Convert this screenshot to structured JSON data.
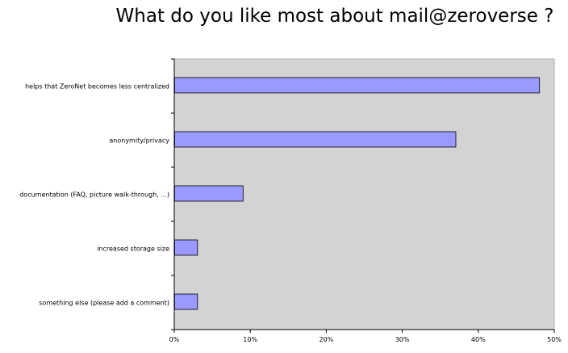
{
  "chart_data": {
    "type": "bar",
    "orientation": "horizontal",
    "title": "What do you like most about mail@zeroverse ?",
    "xlabel": "",
    "ylabel": "",
    "categories": [
      "helps that ZeroNet becomes less centralized",
      "anonymity/privacy",
      "documentation (FAQ, picture walk-through, ...)",
      "increased storage size",
      "something else (please add a comment)"
    ],
    "values": [
      48,
      37,
      9,
      3,
      3
    ],
    "value_unit": "%",
    "xlim": [
      0,
      50
    ],
    "x_ticks": [
      0,
      10,
      20,
      30,
      40,
      50
    ],
    "x_tick_labels": [
      "0%",
      "10%",
      "20%",
      "30%",
      "40%",
      "50%"
    ],
    "grid": false,
    "legend": "none",
    "colors": {
      "bar_fill": "#9999ff",
      "bar_stroke": "#000000",
      "plot_background": "#d3d3d3",
      "axis": "#000000"
    }
  }
}
